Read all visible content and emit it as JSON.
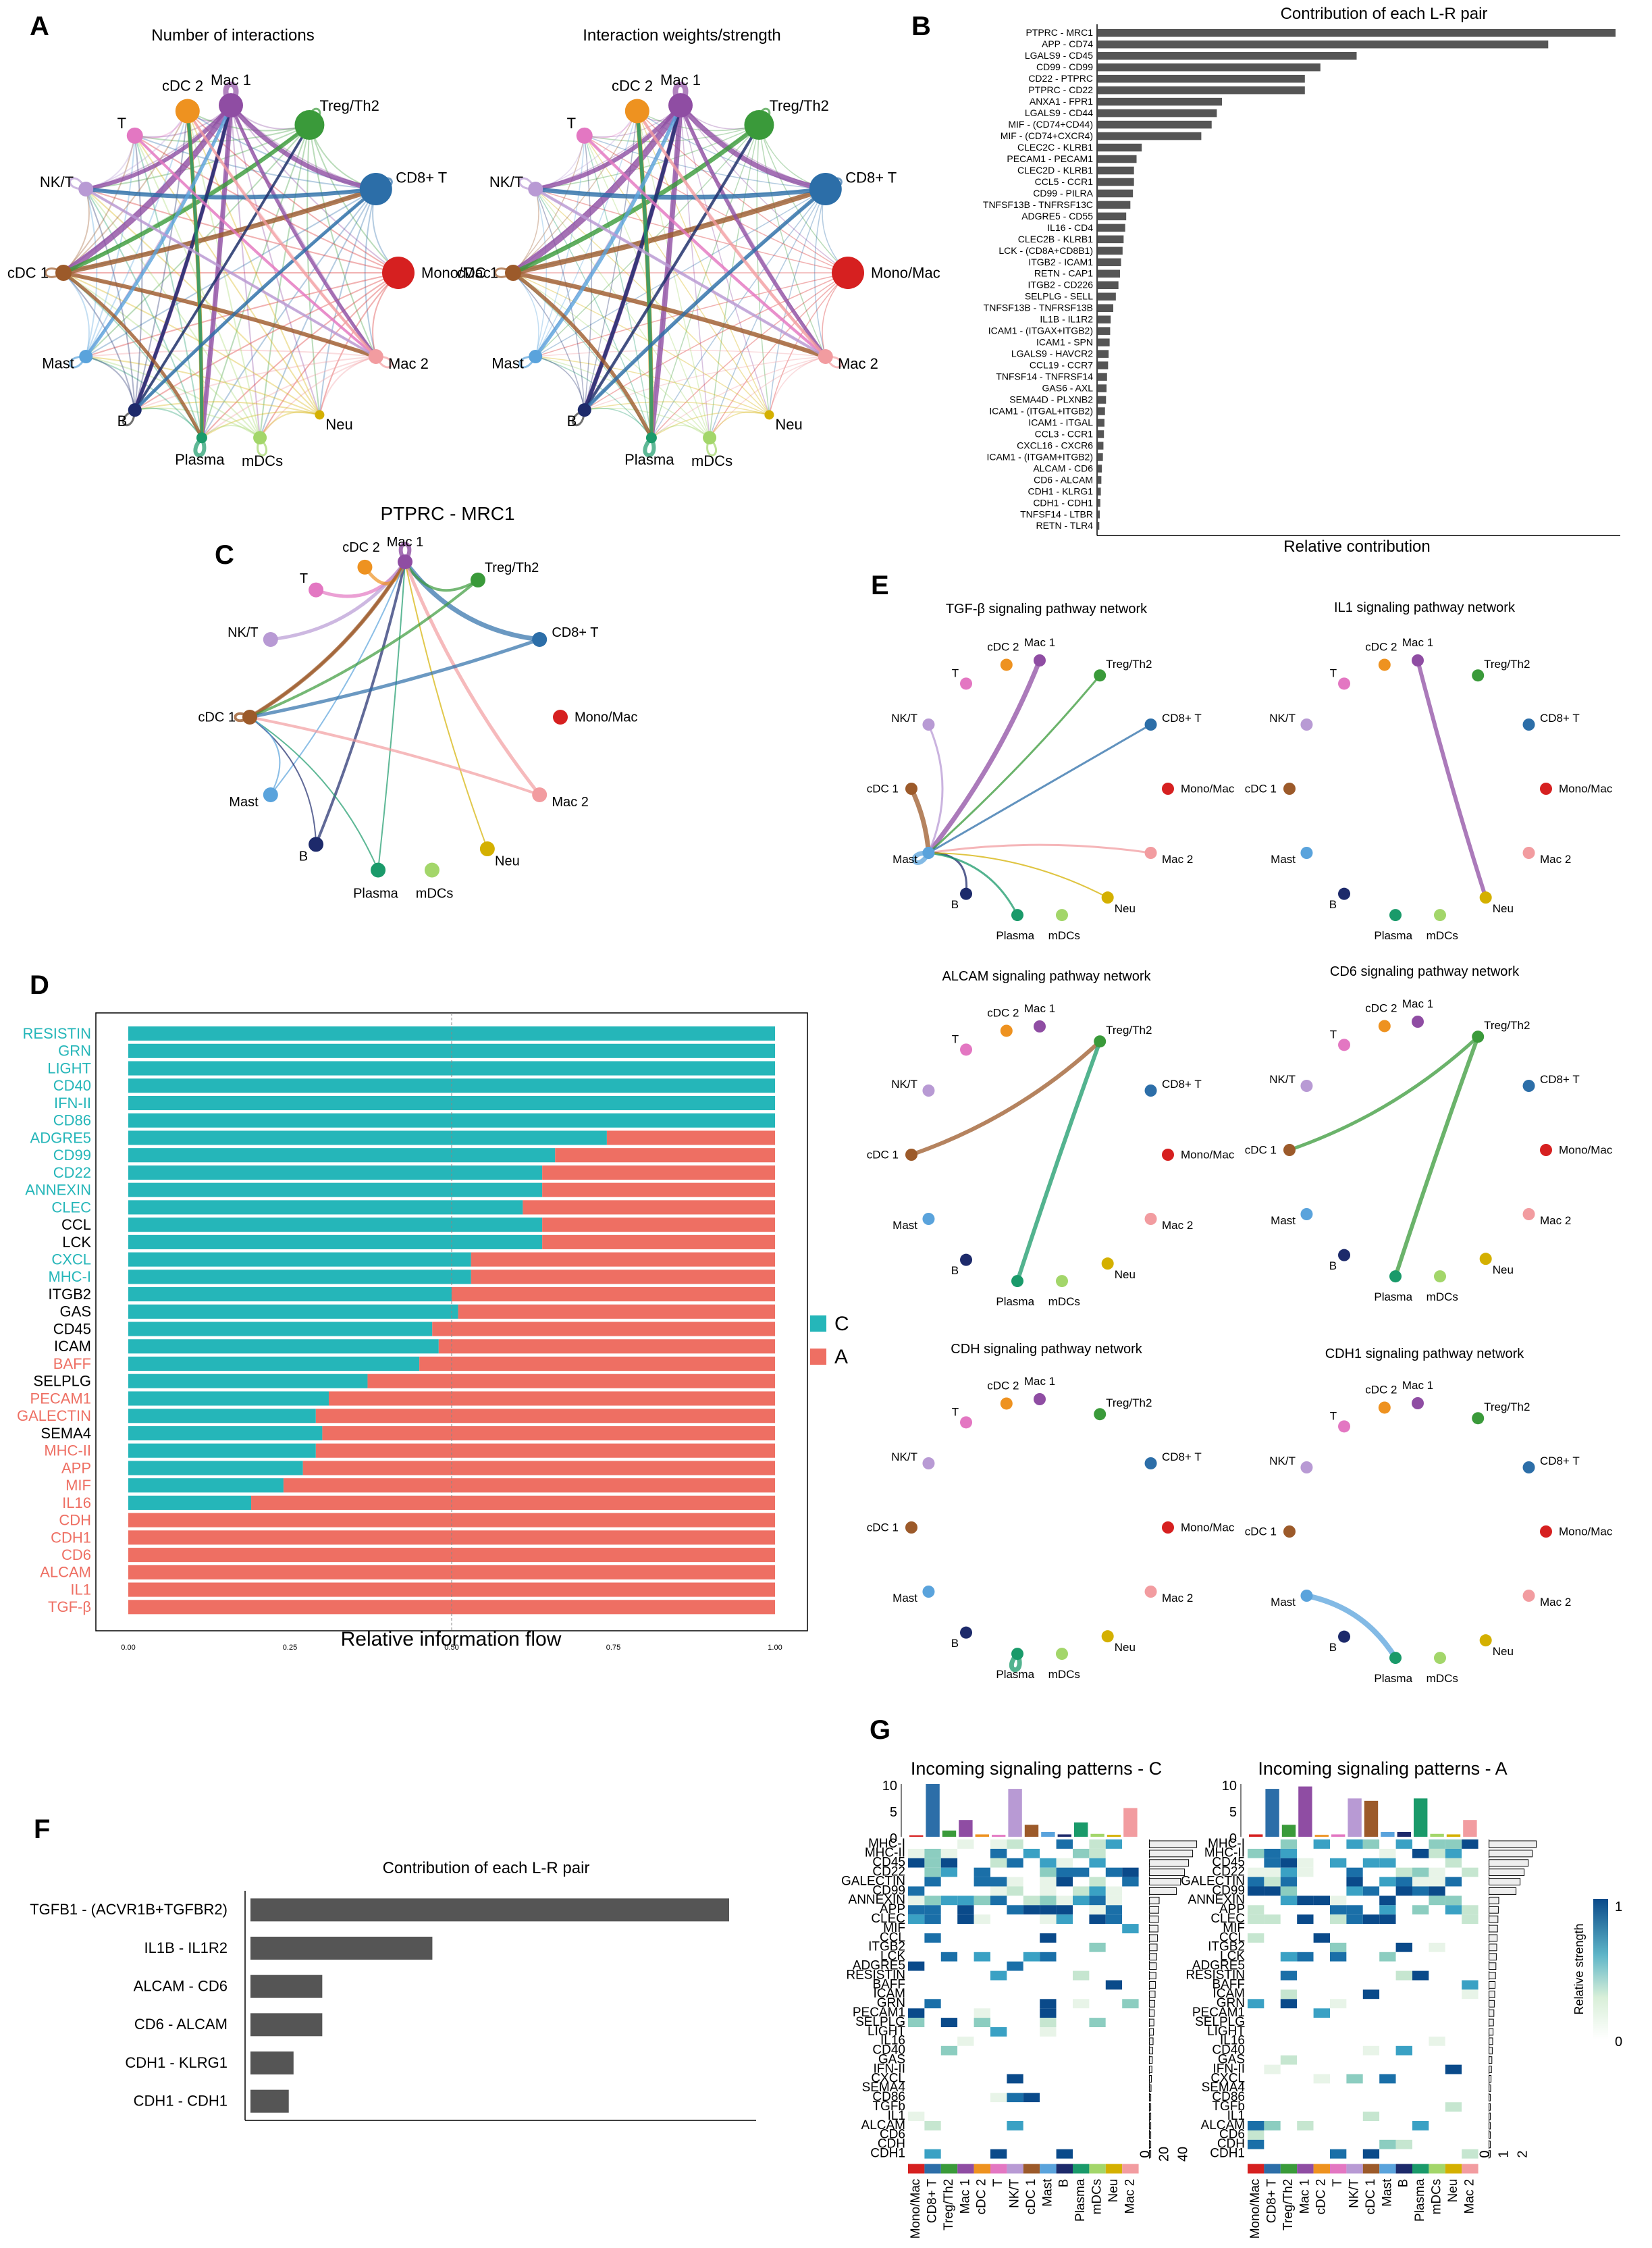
{
  "panel_letters": {
    "a": "A",
    "b": "B",
    "c": "C",
    "d": "D",
    "e": "E",
    "f": "F",
    "g": "G"
  },
  "colors": {
    "T": "#e377c2",
    "cDC 2": "#ee9220",
    "Mac 1": "#8f4da3",
    "Treg/Th2": "#3a9a3a",
    "CD8+ T": "#2c6ea8",
    "Mono/Mac": "#d62020",
    "Mac 2": "#f29ca0",
    "Neu": "#d4b000",
    "mDCs": "#a3d66a",
    "Plasma": "#1a9a6a",
    "B": "#1d2a6b",
    "Mast": "#5aa3dc",
    "cDC 1": "#9c5a2a",
    "NK/T": "#b89ad4",
    "bar": "#555555",
    "condC": "#25b6b9",
    "condA": "#ee6f63"
  },
  "circle_panels": {
    "a1_title": "Number of interactions",
    "a2_title": "Interaction weights/strength",
    "c_title": "PTPRC - MRC1",
    "e_titles": [
      "TGF-β signaling pathway network",
      "IL1 signaling pathway network",
      "ALCAM signaling pathway network",
      "CD6 signaling pathway network",
      "CDH signaling pathway network",
      "CDH1 signaling pathway network"
    ],
    "node_labels": [
      "Mac 1",
      "Treg/Th2",
      "CD8+ T",
      "Mono/Mac",
      "Mac 2",
      "Neu",
      "mDCs",
      "Plasma",
      "B",
      "Mast",
      "cDC 1",
      "NK/T",
      "T",
      "cDC 2"
    ]
  },
  "legend_d": {
    "c": "C",
    "a": "A"
  },
  "heatmap_text": {
    "g_title_c": "Incoming signaling patterns - C",
    "g_title_a": "Incoming signaling patterns - A",
    "scale_title": "Relative strength",
    "scale_max": "1",
    "scale_min": "0",
    "top_ticks": [
      "10",
      "5",
      "0"
    ],
    "right_ticks_c": [
      "0",
      "20",
      "40"
    ],
    "right_ticks_a": [
      "0",
      "1",
      "2"
    ],
    "pathways": [
      "MHC-I",
      "MHC-II",
      "CD45",
      "CD22",
      "GALECTIN",
      "CD99",
      "ANNEXIN",
      "APP",
      "CLEC",
      "MIF",
      "CCL",
      "ITGB2",
      "LCK",
      "ADGRE5",
      "RESISTIN",
      "BAFF",
      "ICAM",
      "GRN",
      "PECAM1",
      "SELPLG",
      "LIGHT",
      "IL16",
      "CD40",
      "GAS",
      "IFN-II",
      "CXCL",
      "SEMA4",
      "CD86",
      "TGFb",
      "IL1",
      "ALCAM",
      "CD6",
      "CDH",
      "CDH1"
    ],
    "cells": [
      "Mono/Mac",
      "CD8+ T",
      "Treg/Th2",
      "Mac 1",
      "cDC 2",
      "T",
      "NK/T",
      "cDC 1",
      "Mast",
      "B",
      "Plasma",
      "mDCs",
      "Neu",
      "Mac 2"
    ]
  },
  "chart_data": [
    {
      "id": "B",
      "type": "bar",
      "orientation": "horizontal",
      "title": "Contribution of each L-R pair",
      "xlabel": "Relative contribution",
      "ylabel": "",
      "categories": [
        "PTPRC - MRC1",
        "APP - CD74",
        "LGALS9 - CD45",
        "CD99 - CD99",
        "CD22 - PTPRC",
        "PTPRC - CD22",
        "ANXA1 - FPR1",
        "LGALS9 - CD44",
        "MIF - (CD74+CD44)",
        "MIF - (CD74+CXCR4)",
        "CLEC2C - KLRB1",
        "PECAM1 - PECAM1",
        "CLEC2D - KLRB1",
        "CCL5 - CCR1",
        "CD99 - PILRA",
        "TNFSF13B - TNFRSF13C",
        "ADGRE5 - CD55",
        "IL16 - CD4",
        "CLEC2B - KLRB1",
        "LCK - (CD8A+CD8B1)",
        "ITGB2 - ICAM1",
        "RETN - CAP1",
        "ITGB2 - CD226",
        "SELPLG - SELL",
        "TNFSF13B - TNFRSF13B",
        "IL1B - IL1R2",
        "ICAM1 - (ITGAX+ITGB2)",
        "ICAM1 - SPN",
        "LGALS9 - HAVCR2",
        "CCL19 - CCR7",
        "TNFSF14 - TNFRSF14",
        "GAS6 - AXL",
        "SEMA4D - PLXNB2",
        "ICAM1 - (ITGAL+ITGB2)",
        "ICAM1 - ITGAL",
        "CCL3 - CCR1",
        "CXCL16 - CXCR6",
        "ICAM1 - (ITGAM+ITGB2)",
        "ALCAM - CD6",
        "CD6 - ALCAM",
        "CDH1 - KLRG1",
        "CDH1 - CDH1",
        "TNFSF14 - LTBR",
        "RETN - TLR4"
      ],
      "values": [
        1.0,
        0.87,
        0.5,
        0.43,
        0.4,
        0.4,
        0.24,
        0.23,
        0.22,
        0.2,
        0.085,
        0.075,
        0.07,
        0.07,
        0.068,
        0.063,
        0.055,
        0.053,
        0.05,
        0.048,
        0.045,
        0.043,
        0.04,
        0.035,
        0.03,
        0.025,
        0.024,
        0.023,
        0.021,
        0.02,
        0.018,
        0.017,
        0.016,
        0.014,
        0.013,
        0.012,
        0.011,
        0.01,
        0.008,
        0.007,
        0.006,
        0.005,
        0.004,
        0.003
      ],
      "xlim": [
        0,
        1.0
      ]
    },
    {
      "id": "D",
      "type": "bar",
      "orientation": "horizontal",
      "stacked": true,
      "title": "",
      "xlabel": "Relative information flow",
      "ylabel": "",
      "x_ticks": [
        "0.00",
        "0.25",
        "0.50",
        "0.75",
        "1.00"
      ],
      "categories": [
        "RESISTIN",
        "GRN",
        "LIGHT",
        "CD40",
        "IFN-II",
        "CD86",
        "ADGRE5",
        "CD99",
        "CD22",
        "ANNEXIN",
        "CLEC",
        "CCL",
        "LCK",
        "CXCL",
        "MHC-I",
        "ITGB2",
        "GAS",
        "CD45",
        "ICAM",
        "BAFF",
        "SELPLG",
        "PECAM1",
        "GALECTIN",
        "SEMA4",
        "MHC-II",
        "APP",
        "MIF",
        "IL16",
        "CDH",
        "CDH1",
        "CD6",
        "ALCAM",
        "IL1",
        "TGF-β"
      ],
      "label_color": [
        "C",
        "C",
        "C",
        "C",
        "C",
        "C",
        "C",
        "C",
        "C",
        "C",
        "C",
        "K",
        "K",
        "C",
        "C",
        "K",
        "K",
        "K",
        "K",
        "A",
        "K",
        "A",
        "A",
        "K",
        "A",
        "A",
        "A",
        "A",
        "A",
        "A",
        "A",
        "A",
        "A",
        "A"
      ],
      "series": [
        {
          "name": "C",
          "values": [
            1,
            1,
            1,
            1,
            1,
            1,
            0.74,
            0.66,
            0.64,
            0.64,
            0.61,
            0.64,
            0.64,
            0.53,
            0.53,
            0.5,
            0.51,
            0.47,
            0.48,
            0.45,
            0.37,
            0.31,
            0.29,
            0.3,
            0.29,
            0.27,
            0.24,
            0.19,
            0,
            0,
            0,
            0,
            0,
            0
          ]
        },
        {
          "name": "A",
          "values": [
            0,
            0,
            0,
            0,
            0,
            0,
            0.26,
            0.34,
            0.36,
            0.36,
            0.39,
            0.36,
            0.36,
            0.47,
            0.47,
            0.5,
            0.49,
            0.53,
            0.52,
            0.55,
            0.63,
            0.69,
            0.71,
            0.7,
            0.71,
            0.73,
            0.76,
            0.81,
            1,
            1,
            1,
            1,
            1,
            1
          ]
        }
      ],
      "xlim": [
        0,
        1
      ]
    },
    {
      "id": "F",
      "type": "bar",
      "orientation": "horizontal",
      "title": "Contribution of each L-R pair",
      "xlabel": "",
      "ylabel": "",
      "categories": [
        "TGFB1 - (ACVR1B+TGFBR2)",
        "IL1B - IL1R2",
        "ALCAM - CD6",
        "CD6 - ALCAM",
        "CDH1 - KLRG1",
        "CDH1 - CDH1"
      ],
      "values": [
        1.0,
        0.38,
        0.15,
        0.15,
        0.09,
        0.08
      ],
      "xlim": [
        0,
        1
      ]
    }
  ]
}
